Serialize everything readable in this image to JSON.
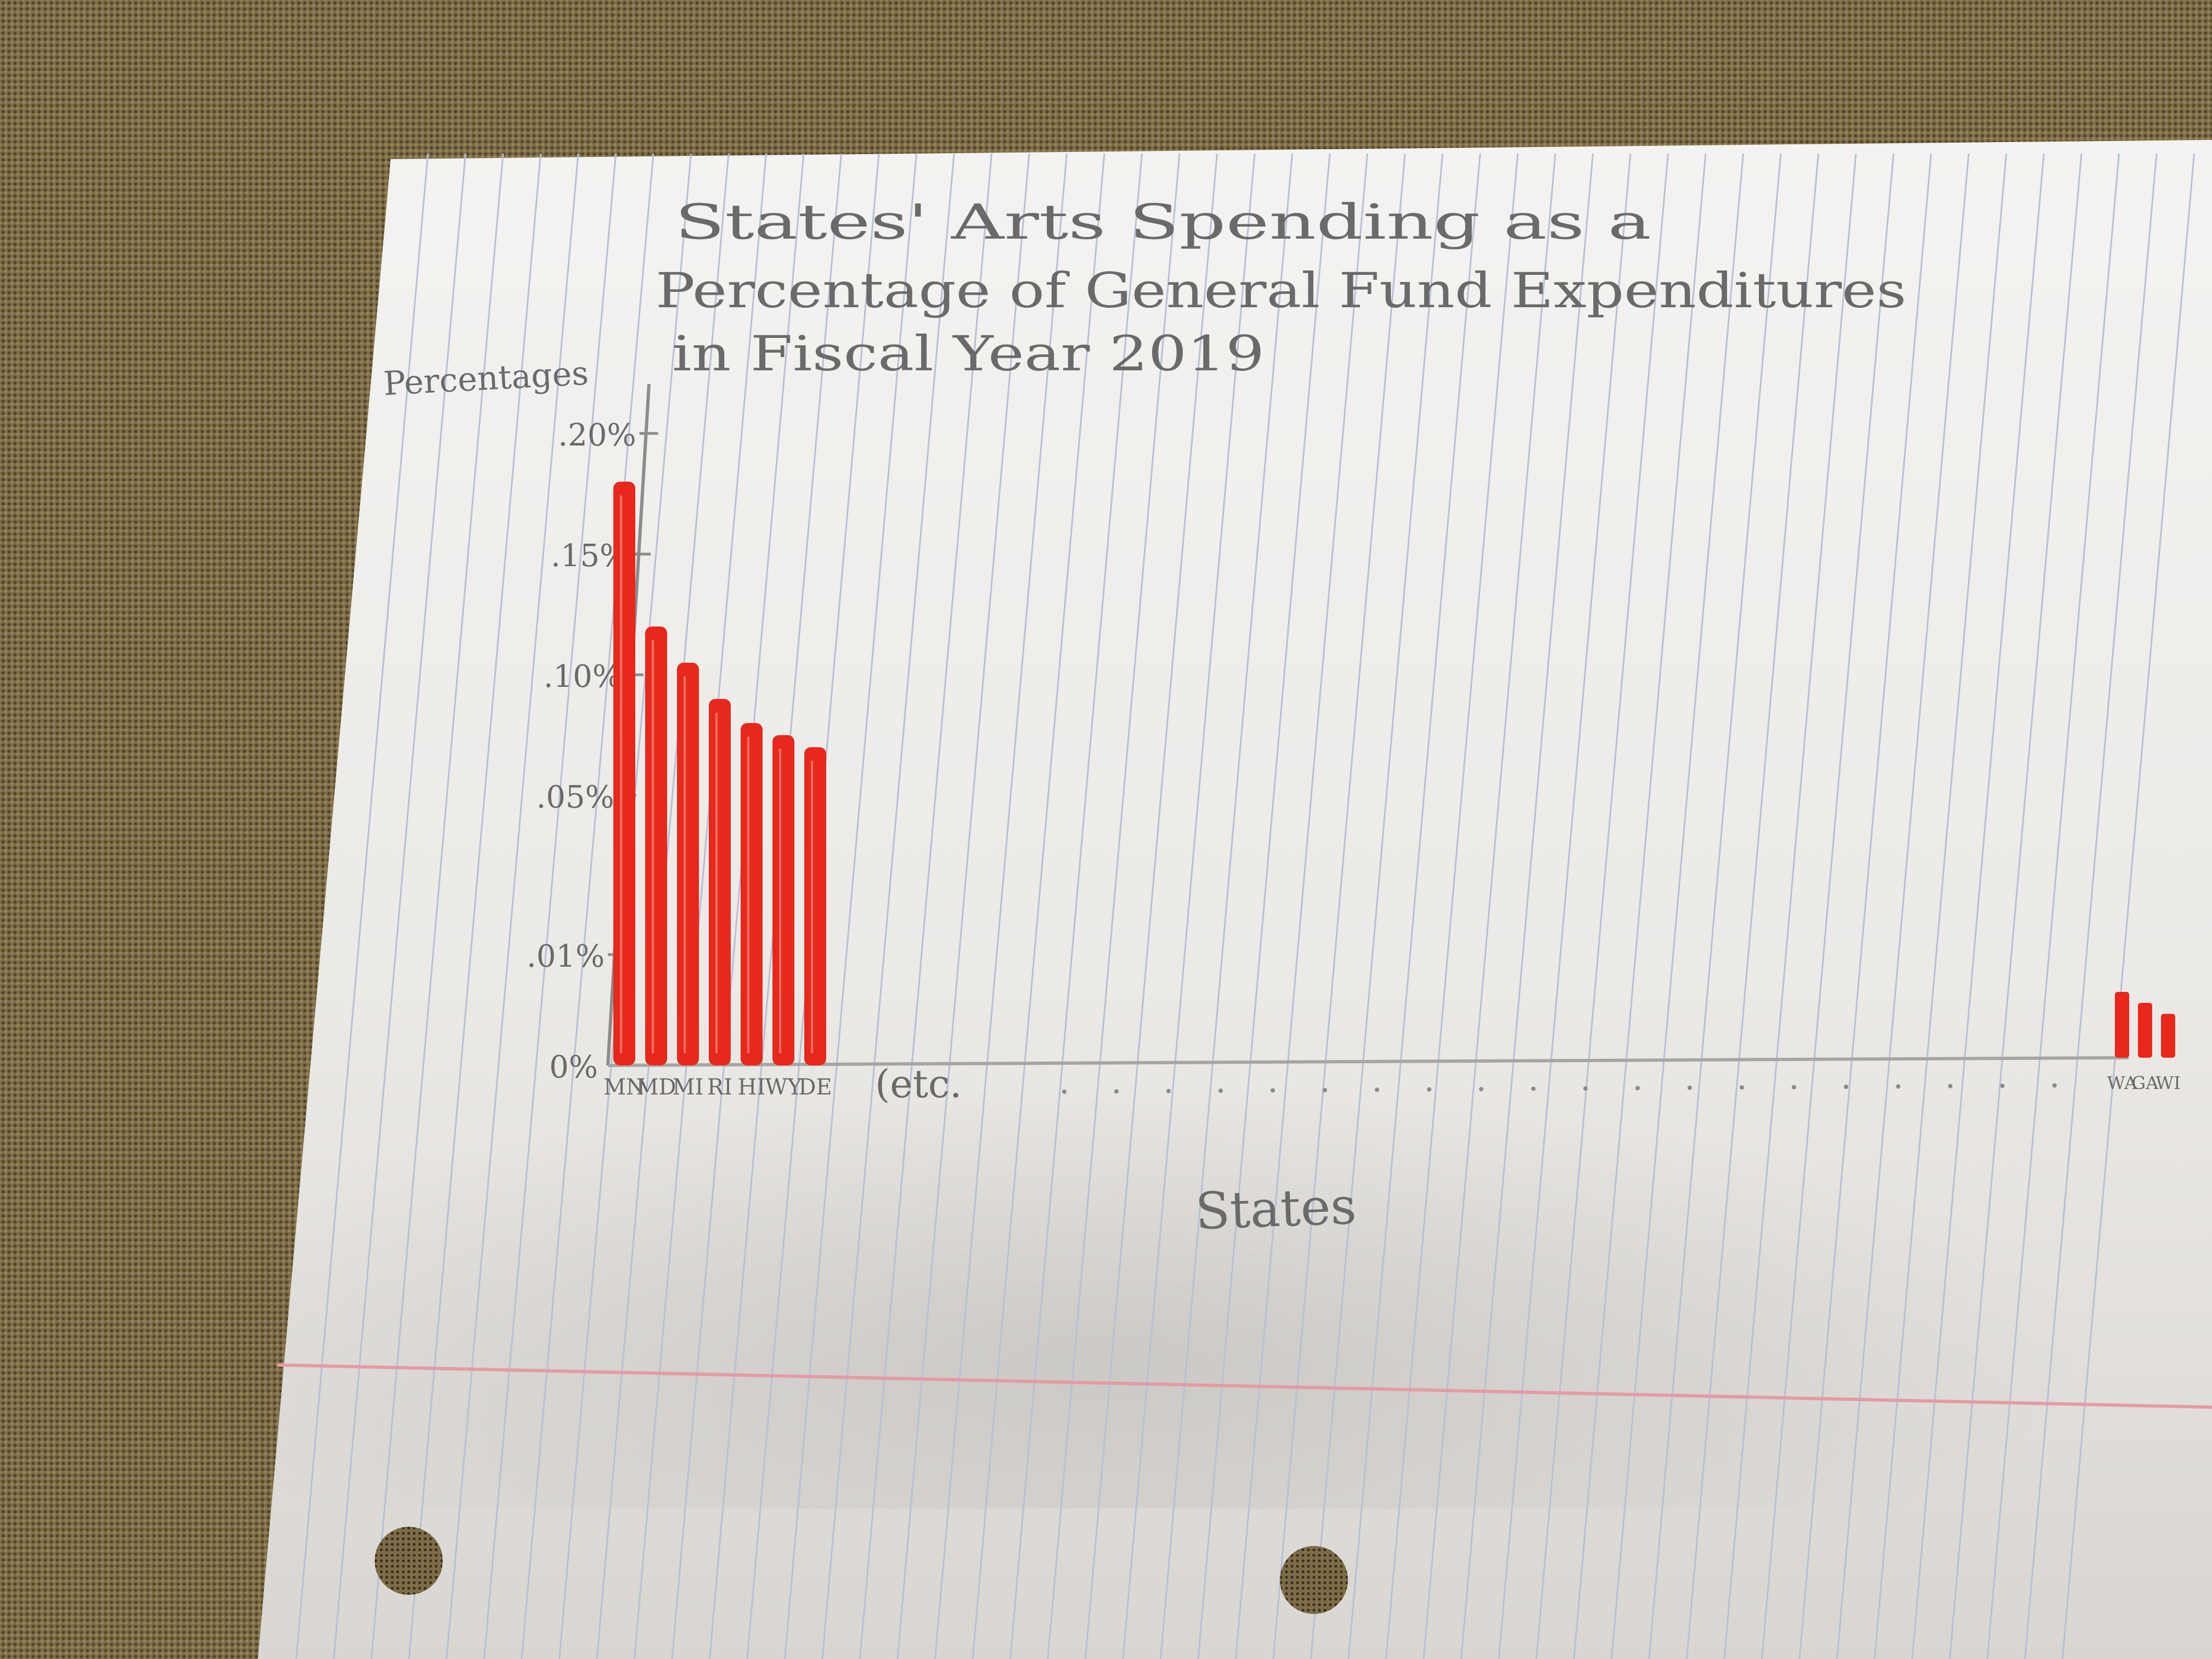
{
  "chart_data": {
    "type": "bar",
    "title_lines": [
      "States' Arts Spending as a",
      "Percentage of General Fund Expenditures",
      "in Fiscal Year 2019"
    ],
    "ylabel": "Percentages",
    "xlabel": "States",
    "yticks": [
      {
        "label": "0%",
        "value": 0
      },
      {
        "label": ".01%",
        "value": 0.01
      },
      {
        "label": ".05%",
        "value": 0.05
      },
      {
        "label": ".10%",
        "value": 0.1
      },
      {
        "label": ".15%",
        "value": 0.15
      },
      {
        "label": ".20%",
        "value": 0.2
      }
    ],
    "ylim": [
      0,
      0.2
    ],
    "y_scale_note": "hand-drawn, non-linear spacing",
    "categories": [
      "MN",
      "MD",
      "MI",
      "RI",
      "HI",
      "WY",
      "DE"
    ],
    "values": [
      0.18,
      0.12,
      0.105,
      0.09,
      0.08,
      0.075,
      0.07
    ],
    "continuation_label": "(etc.",
    "tail_categories": [
      "WA",
      "GA",
      "WI"
    ],
    "tail_values": [
      0.003,
      0.0025,
      0.002
    ],
    "bar_color": "#e8281c",
    "grid": false
  }
}
